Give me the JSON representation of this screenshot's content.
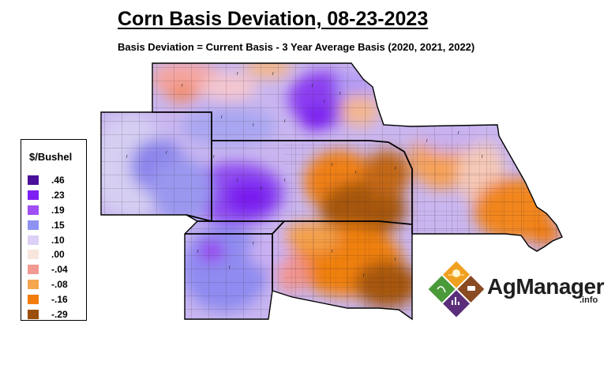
{
  "header": {
    "title": "Corn Basis Deviation, 08-23-2023",
    "subtitle": "Basis Deviation = Current Basis - 3 Year Average Basis (2020, 2021, 2022)"
  },
  "legend": {
    "title": "$/Bushel",
    "items": [
      {
        "label": ".46",
        "color": "#4a0f9a"
      },
      {
        "label": ".23",
        "color": "#7f1ff5"
      },
      {
        "label": ".19",
        "color": "#a04ef5"
      },
      {
        "label": ".15",
        "color": "#8e93f2"
      },
      {
        "label": ".10",
        "color": "#dcd0f6"
      },
      {
        "label": ".00",
        "color": "#f8e5dc"
      },
      {
        "label": "-.04",
        "color": "#f29a92"
      },
      {
        "label": "-.08",
        "color": "#f5a64e"
      },
      {
        "label": "-.16",
        "color": "#f27d0c"
      },
      {
        "label": "-.29",
        "color": "#9a4f0c"
      }
    ]
  },
  "logo": {
    "name": "AgManager",
    "suffix": ".info",
    "icons": [
      "sun-icon",
      "wheat-icon",
      "cow-icon",
      "chart-icon"
    ]
  }
}
